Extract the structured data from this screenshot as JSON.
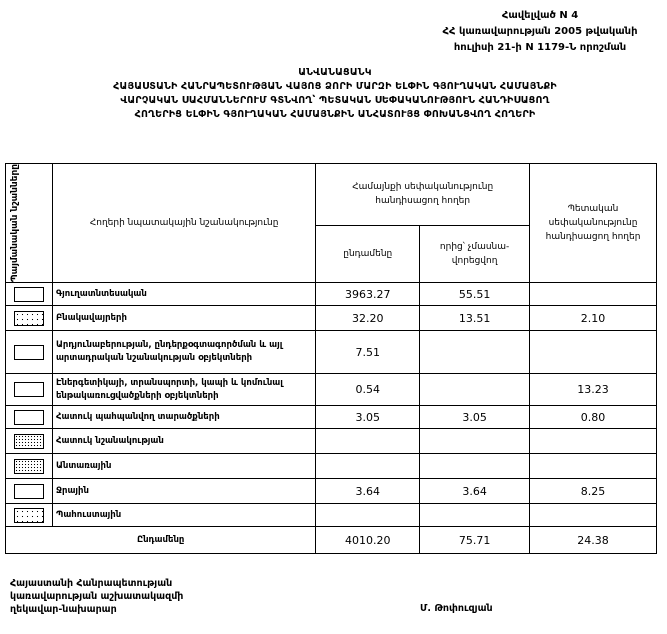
{
  "annex": {
    "line1": "Հավելված N 4",
    "line2": "ՀՀ կառավարության 2005 թվականի",
    "line3": "հուլիսի 21-ի N 1179-Ն որոշման"
  },
  "title": {
    "line1": "ԱՆՎԱՆԱՑԱՆԿ",
    "line2": "ՀԱՅԱՍՏԱՆԻ ՀԱՆՐԱՊԵՏՈՒԹՅԱՆ ՎԱՅՈՑ ՁՈՐԻ ՄԱՐԶԻ ԵԼՓԻՆ ԳՅՈՒՂԱԿԱՆ ՀԱՄԱՅՆՔԻ",
    "line3": "ՎԱՐՉԱԿԱՆ ՍԱՀՄԱՆՆԵՐՈՒՄ ԳՏՆՎՈՂ՝ ՊԵՏԱԿԱՆ ՍԵՓԱԿԱՆՈՒԹՅՈՒՆ ՀԱՆԴԻՍԱՑՈՂ",
    "line4": "ՀՈՂԵՐԻՑ ԵԼՓԻՆ ԳՅՈՒՂԱԿԱՆ ՀԱՄԱՅՆՔԻՆ ԱՆՀԱՏՈՒՅՑ ՓՈԽԱՆՑՎՈՂ ՀՈՂԵՐԻ"
  },
  "table": {
    "headers": {
      "symbols": "Պայմանական նշանները",
      "purpose": "Հողերի նպատակային նշանակությունը",
      "community": "Համայնքի սեփականությունը հանդիսացող հողեր",
      "total": "ընդամենը",
      "unprivatized": "որից՝ չմասնա-վորեցվող",
      "state": "Պետական սեփականությունը հանդիսացող հողեր"
    },
    "rows": [
      {
        "symbol": "blank",
        "label": "Գյուղատնտեսական",
        "total": "3963.27",
        "unprivatized": "55.51",
        "state": ""
      },
      {
        "symbol": "sparse-dots",
        "label": "Բնակավայրերի",
        "total": "32.20",
        "unprivatized": "13.51",
        "state": "2.10"
      },
      {
        "symbol": "blank",
        "label": "Արդյունաբերության, ընդերքօգտագործման և այլ արտադրական նշանակության օբյեկտների",
        "total": "7.51",
        "unprivatized": "",
        "state": ""
      },
      {
        "symbol": "blank",
        "label": "Էներգետիկայի, տրանսպորտի, կապի և կոմունալ ենթակառուցվածքների օբյեկտների",
        "total": "0.54",
        "unprivatized": "",
        "state": "13.23"
      },
      {
        "symbol": "blank",
        "label": "Հատուկ պահպանվող տարածքների",
        "total": "3.05",
        "unprivatized": "3.05",
        "state": "0.80"
      },
      {
        "symbol": "dense-dots",
        "label": "Հատուկ նշանակության",
        "total": "",
        "unprivatized": "",
        "state": ""
      },
      {
        "symbol": "dense-dots",
        "label": "Անտառային",
        "total": "",
        "unprivatized": "",
        "state": ""
      },
      {
        "symbol": "blank",
        "label": "Ջրային",
        "total": "3.64",
        "unprivatized": "3.64",
        "state": "8.25"
      },
      {
        "symbol": "sparse-dots",
        "label": "Պահուստային",
        "total": "",
        "unprivatized": "",
        "state": ""
      }
    ],
    "sum": {
      "label": "Ընդամենը",
      "total": "4010.20",
      "unprivatized": "75.71",
      "state": "24.38"
    }
  },
  "footer": {
    "line1": "Հայաստանի Հանրապետության",
    "line2": "կառավարության աշխատակազմի",
    "line3": "ղեկավար-նախարար",
    "signature": "Մ. Թոփուզյան"
  }
}
